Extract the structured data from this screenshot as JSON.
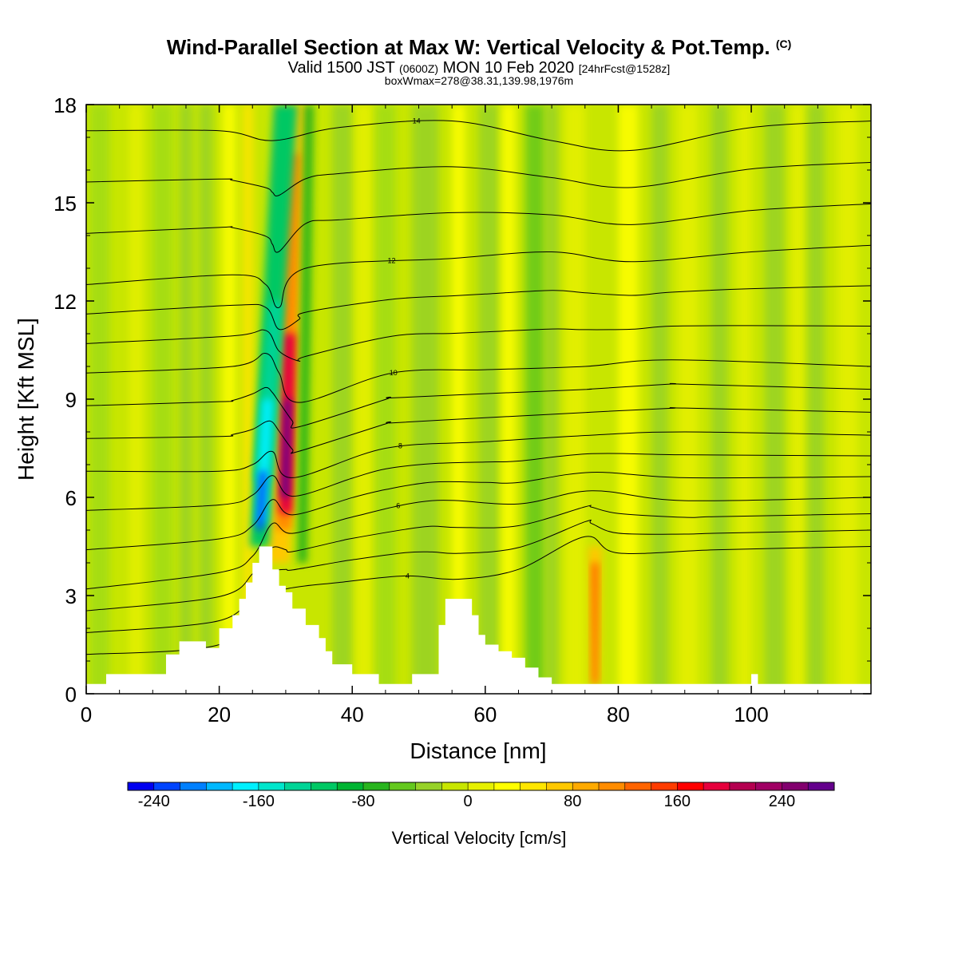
{
  "header": {
    "title": "Wind-Parallel Section at Max W: Vertical Velocity & Pot.Temp.",
    "copyright": "(C)",
    "valid_prefix": "Valid 1500 JST",
    "valid_utc": "(0600Z)",
    "valid_date": "MON 10 Feb 2020",
    "forecast": "[24hrFcst@1528z]",
    "box_info": "boxWmax=278@38.31,139.98,1976m"
  },
  "chart_data": {
    "type": "heatmap",
    "xlabel": "Distance [nm]",
    "ylabel": "Height [Kft MSL]",
    "xlim": [
      0,
      118
    ],
    "ylim": [
      0,
      18
    ],
    "x_ticks": [
      0,
      20,
      40,
      60,
      80,
      100
    ],
    "y_ticks": [
      0,
      3,
      6,
      9,
      12,
      15,
      18
    ],
    "grid": false,
    "colorbar": {
      "title": "Vertical Velocity [cm/s]",
      "range": [
        -260,
        280
      ],
      "step": 20,
      "tick_values": [
        -240,
        -160,
        -80,
        0,
        80,
        160,
        240
      ],
      "tick_labels": [
        "-240",
        "-160",
        "-80",
        "0",
        "80",
        "160",
        "240"
      ],
      "colors": [
        "#0000f0",
        "#0044ff",
        "#0080ff",
        "#00b8ff",
        "#00f0ff",
        "#00e6cc",
        "#00d496",
        "#00c864",
        "#00b432",
        "#28b41e",
        "#64c81e",
        "#96d228",
        "#c8e600",
        "#e6f000",
        "#ffff00",
        "#ffe600",
        "#ffc800",
        "#ffaa00",
        "#ff8c00",
        "#ff6400",
        "#ff3c00",
        "#ff0000",
        "#e6003c",
        "#b40050",
        "#a00064",
        "#82006e",
        "#64008c"
      ]
    },
    "features": [
      {
        "kind": "max_updraft",
        "x": 30.5,
        "y_range": [
          4.0,
          18.0
        ],
        "peak_value": 278
      },
      {
        "kind": "max_downdraft",
        "x": 27.0,
        "y_range": [
          4.5,
          12.0
        ],
        "peak_value": -240
      },
      {
        "kind": "updraft",
        "x": 76.5,
        "y_range": [
          0.3,
          4.5
        ],
        "peak_value": 120
      }
    ],
    "terrain": {
      "x": [
        0,
        3,
        3,
        12,
        12,
        14,
        14,
        18,
        18,
        20,
        20,
        22,
        22,
        23,
        23,
        24,
        24,
        25,
        25,
        26,
        26,
        28,
        28,
        29,
        29,
        30,
        30,
        31,
        31,
        33,
        33,
        35,
        35,
        36,
        36,
        37,
        37,
        40,
        40,
        44,
        44,
        49,
        49,
        53,
        53,
        54,
        54,
        58,
        58,
        59,
        59,
        60,
        60,
        62,
        62,
        64,
        64,
        66,
        66,
        68,
        68,
        70,
        70,
        71,
        71,
        100,
        100,
        101,
        101,
        118
      ],
      "y": [
        0.3,
        0.3,
        0.6,
        0.6,
        1.2,
        1.2,
        1.6,
        1.6,
        1.4,
        1.4,
        2.0,
        2.0,
        2.4,
        2.4,
        2.9,
        2.9,
        3.4,
        3.4,
        4.0,
        4.0,
        4.5,
        4.5,
        3.8,
        3.8,
        3.3,
        3.3,
        3.1,
        3.1,
        2.6,
        2.6,
        2.1,
        2.1,
        1.7,
        1.7,
        1.3,
        1.3,
        0.9,
        0.9,
        0.6,
        0.6,
        0.3,
        0.3,
        0.6,
        0.6,
        2.1,
        2.1,
        2.9,
        2.9,
        2.4,
        2.4,
        1.8,
        1.8,
        1.5,
        1.5,
        1.3,
        1.3,
        1.1,
        1.1,
        0.8,
        0.8,
        0.5,
        0.5,
        0.3,
        0.3,
        0.3,
        0.3,
        0.6,
        0.6,
        0.3,
        0.3
      ]
    },
    "contours": [
      {
        "label": "4",
        "points": [
          [
            0,
            1.2
          ],
          [
            20,
            1.5
          ],
          [
            26,
            2.8
          ],
          [
            30,
            3.2
          ],
          [
            38,
            3.4
          ],
          [
            48,
            3.6
          ],
          [
            56,
            3.5
          ],
          [
            65,
            3.8
          ],
          [
            75,
            4.8
          ],
          [
            80,
            4.3
          ],
          [
            95,
            4.4
          ],
          [
            118,
            4.5
          ]
        ]
      },
      {
        "label": "6",
        "points": [
          [
            0,
            3.2
          ],
          [
            20,
            3.7
          ],
          [
            25,
            4.2
          ],
          [
            28,
            5.2
          ],
          [
            31,
            4.9
          ],
          [
            40,
            5.4
          ],
          [
            52,
            5.9
          ],
          [
            65,
            5.8
          ],
          [
            76,
            6.2
          ],
          [
            90,
            5.9
          ],
          [
            118,
            6.0
          ]
        ]
      },
      {
        "label": "8",
        "points": [
          [
            0,
            6.8
          ],
          [
            20,
            6.8
          ],
          [
            25,
            7.0
          ],
          [
            28,
            7.4
          ],
          [
            31,
            6.6
          ],
          [
            45,
            7.5
          ],
          [
            60,
            7.7
          ],
          [
            76,
            7.9
          ],
          [
            90,
            8.0
          ],
          [
            118,
            7.9
          ]
        ]
      },
      {
        "label": "10",
        "points": [
          [
            0,
            9.8
          ],
          [
            22,
            10.0
          ],
          [
            27,
            10.4
          ],
          [
            29,
            9.8
          ],
          [
            32,
            8.9
          ],
          [
            46,
            9.8
          ],
          [
            60,
            9.9
          ],
          [
            75,
            10.0
          ],
          [
            88,
            10.2
          ],
          [
            118,
            10.0
          ]
        ]
      },
      {
        "label": "12",
        "points": [
          [
            0,
            12.5
          ],
          [
            22,
            12.8
          ],
          [
            27,
            12.5
          ],
          [
            29,
            11.8
          ],
          [
            33,
            13.0
          ],
          [
            55,
            13.3
          ],
          [
            70,
            13.5
          ],
          [
            82,
            13.2
          ],
          [
            100,
            13.5
          ],
          [
            118,
            13.7
          ]
        ]
      },
      {
        "label": "14",
        "points": [
          [
            0,
            17.2
          ],
          [
            20,
            17.2
          ],
          [
            28,
            16.9
          ],
          [
            38,
            17.3
          ],
          [
            55,
            17.5
          ],
          [
            70,
            16.9
          ],
          [
            82,
            16.6
          ],
          [
            100,
            17.3
          ],
          [
            118,
            17.5
          ]
        ]
      }
    ],
    "contour_label_values": [
      "4",
      "6",
      "8",
      "10",
      "12",
      "14"
    ]
  },
  "colors": {
    "background_field": "#c8e600",
    "terrain_fill": "#ffffff",
    "contour_line": "#000000"
  }
}
